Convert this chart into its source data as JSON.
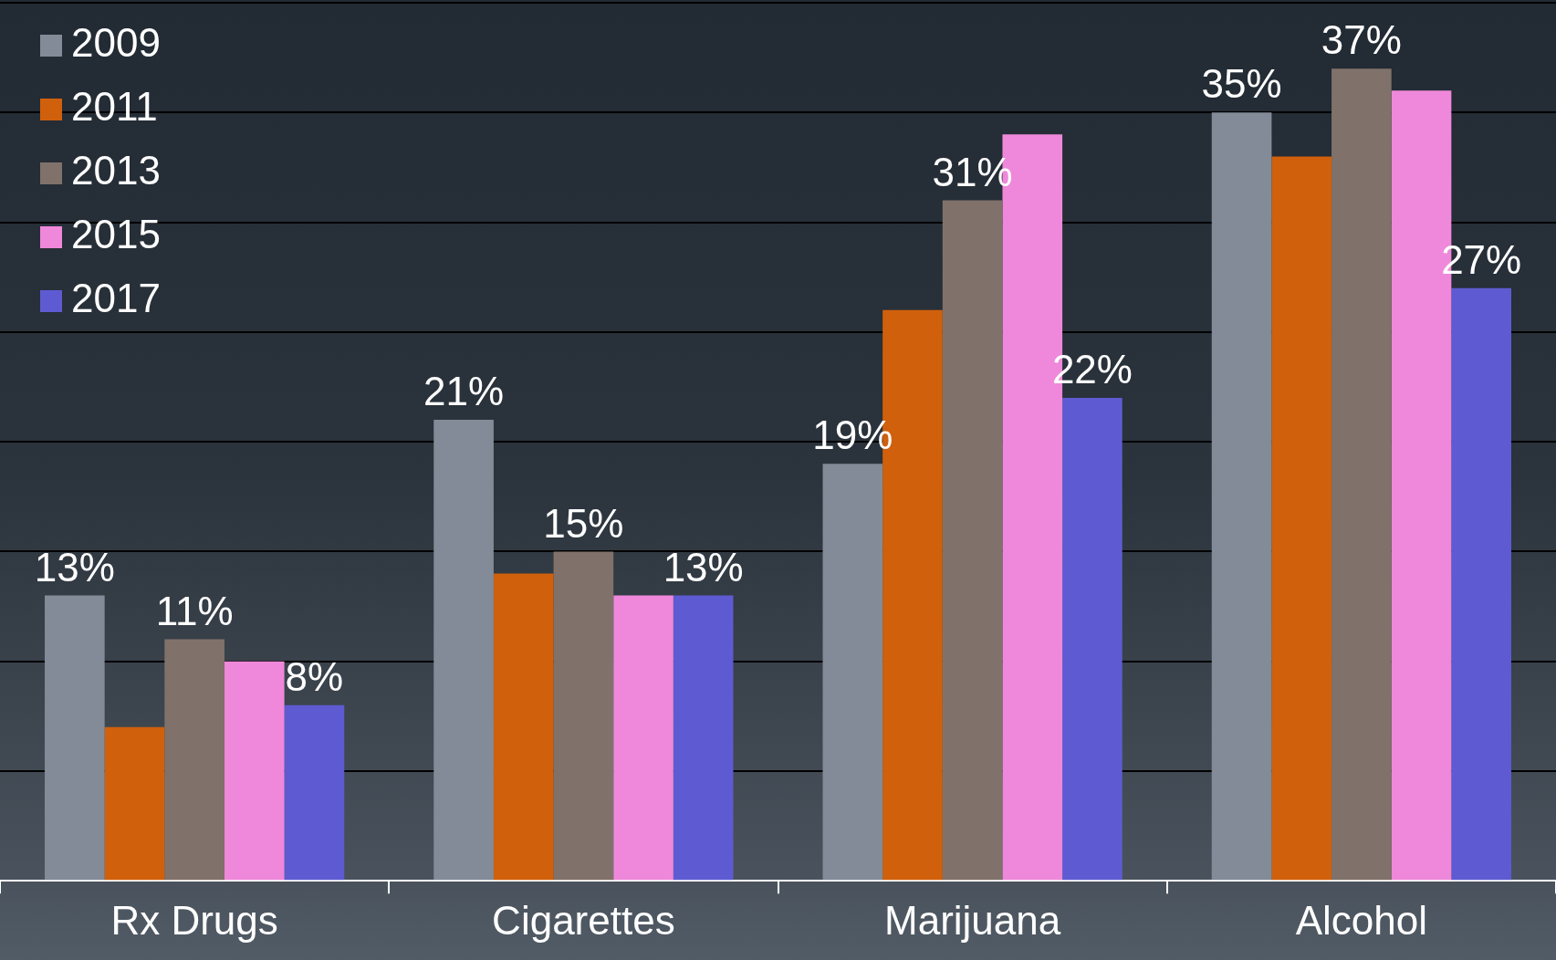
{
  "chart_data": {
    "type": "bar",
    "categories": [
      "Rx Drugs",
      "Cigarettes",
      "Marijuana",
      "Alcohol"
    ],
    "series": [
      {
        "name": "2009",
        "color": "#838b98",
        "values": [
          13,
          21,
          19,
          35
        ],
        "value_labels": [
          "13%",
          "21%",
          "19%",
          "35%"
        ]
      },
      {
        "name": "2011",
        "color": "#d0600c",
        "values": [
          7,
          14,
          26,
          33
        ],
        "value_labels": [
          null,
          null,
          null,
          null
        ]
      },
      {
        "name": "2013",
        "color": "#80726a",
        "values": [
          11,
          15,
          31,
          37
        ],
        "value_labels": [
          "11%",
          "15%",
          "31%",
          "37%"
        ]
      },
      {
        "name": "2015",
        "color": "#ef88da",
        "values": [
          10,
          13,
          34,
          36
        ],
        "value_labels": [
          null,
          null,
          null,
          null
        ]
      },
      {
        "name": "2017",
        "color": "#5e5bd2",
        "values": [
          8,
          13,
          22,
          27
        ],
        "value_labels": [
          "8%",
          "13%",
          "22%",
          "27%"
        ]
      }
    ],
    "ylim": [
      0,
      40
    ],
    "yticks": [
      {
        "value": 0,
        "label": null
      },
      {
        "value": 5,
        "label": null
      },
      {
        "value": 10,
        "label": null
      },
      {
        "value": 15,
        "label": null
      },
      {
        "value": 20,
        "label": null
      },
      {
        "value": 25,
        "label": null
      },
      {
        "value": 30,
        "label": null
      },
      {
        "value": 35,
        "label": null
      },
      {
        "value": 40,
        "label": null
      }
    ],
    "tick_labels": "x",
    "grid": "y",
    "legend": "top left"
  }
}
